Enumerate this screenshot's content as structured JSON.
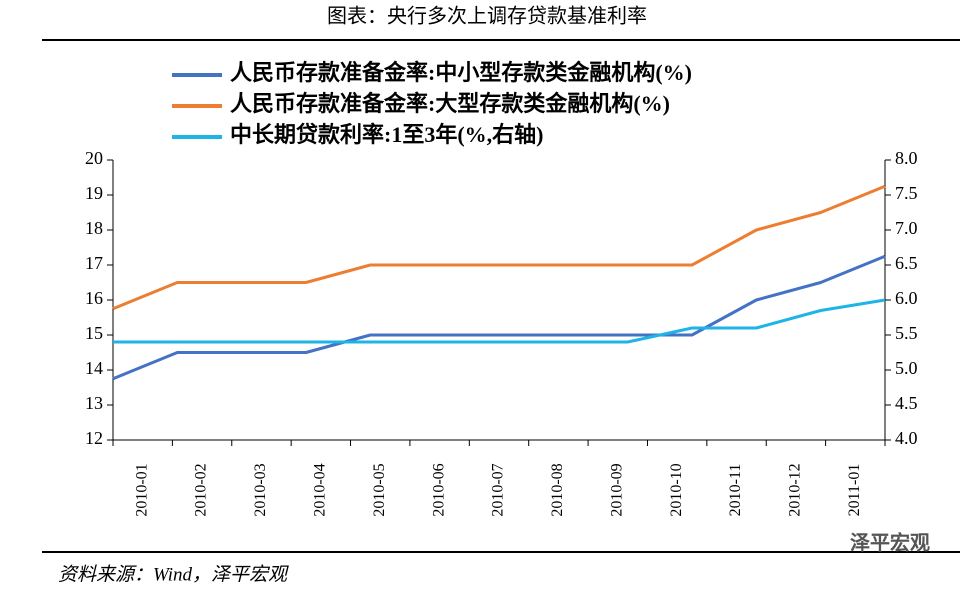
{
  "chart_data": {
    "type": "line",
    "title": "图表：央行多次上调存贷款基准利率",
    "source": "资料来源：Wind，泽平宏观",
    "watermark": "泽平宏观",
    "categories": [
      "2010-01",
      "2010-02",
      "2010-03",
      "2010-04",
      "2010-05",
      "2010-06",
      "2010-07",
      "2010-08",
      "2010-09",
      "2010-10",
      "2010-11",
      "2010-12",
      "2011-01"
    ],
    "series": [
      {
        "name": "人民币存款准备金率:中小型存款类金融机构(%)",
        "color": "#4472c4",
        "values": [
          13.75,
          14.5,
          14.5,
          14.5,
          15,
          15,
          15,
          15,
          15,
          15,
          16,
          16.5,
          17.25
        ]
      },
      {
        "name": "人民币存款准备金率:大型存款类金融机构(%)",
        "color": "#ed7d31",
        "values": [
          15.75,
          16.5,
          16.5,
          16.5,
          17,
          17,
          17,
          17,
          17,
          17,
          18,
          18.5,
          19.25
        ]
      },
      {
        "name": "中长期贷款利率:1至3年(%,右轴)",
        "color": "#1eb4e6",
        "axis": "y2",
        "values": [
          5.4,
          5.4,
          5.4,
          5.4,
          5.4,
          5.4,
          5.4,
          5.4,
          5.4,
          5.6,
          5.6,
          5.85,
          6
        ]
      }
    ],
    "ylim": [
      12,
      20
    ],
    "yticks": [
      12,
      13,
      14,
      15,
      16,
      17,
      18,
      19,
      20
    ],
    "y2lim": [
      4,
      8
    ],
    "y2ticks": [
      {
        "value": 4,
        "label": "4.0"
      },
      4.5,
      {
        "value": 5,
        "label": "5.0"
      },
      5.5,
      {
        "value": 6,
        "label": "6.0"
      },
      6.5,
      {
        "value": 7,
        "label": "7.0"
      },
      7.5,
      {
        "value": 8,
        "label": "8.0"
      }
    ]
  }
}
